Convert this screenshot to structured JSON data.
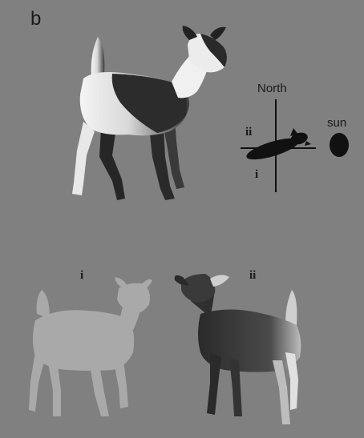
{
  "figure": {
    "panel_label": "b",
    "compass": {
      "north_label": "North",
      "sun_label": "sun",
      "side_i_label": "i",
      "side_ii_label": "ii"
    },
    "views": [
      {
        "label": "i"
      },
      {
        "label": "ii"
      }
    ],
    "colors": {
      "background": "#808080",
      "silhouette_flat": "#a9a9a9",
      "dark": "#1a1a1a",
      "highlight": "#f2f2f2"
    }
  }
}
